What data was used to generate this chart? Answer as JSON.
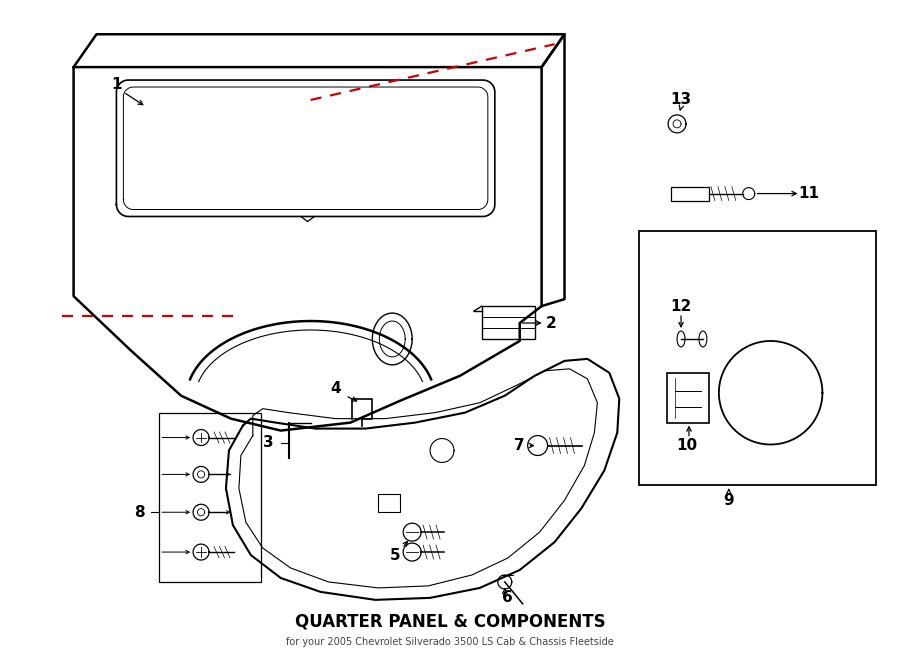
{
  "title": "QUARTER PANEL & COMPONENTS",
  "subtitle": "for your 2005 Chevrolet Silverado 3500 LS Cab & Chassis Fleetside",
  "bg_color": "#ffffff",
  "line_color": "#000000",
  "red_dash_color": "#cc0000",
  "label_color": "#000000"
}
